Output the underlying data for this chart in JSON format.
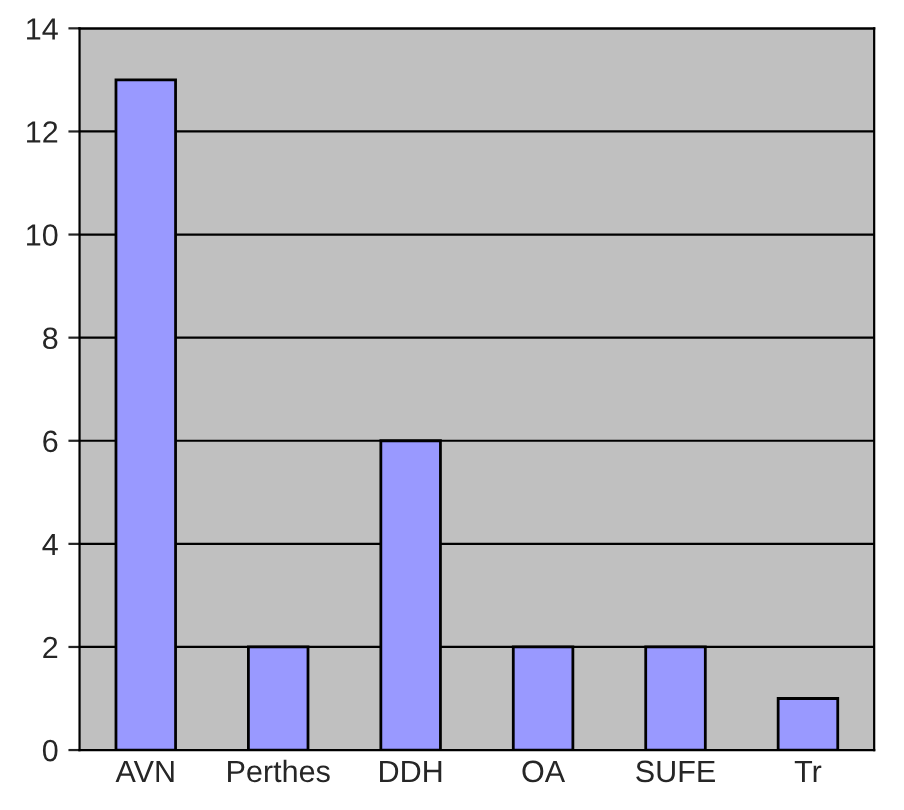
{
  "chart_data": {
    "type": "bar",
    "categories": [
      "AVN",
      "Perthes",
      "DDH",
      "OA",
      "SUFE",
      "Tr"
    ],
    "values": [
      13,
      2,
      6,
      2,
      2,
      1
    ],
    "color": "#9999ff",
    "ylim": [
      0,
      14
    ],
    "yticks": [
      0,
      2,
      4,
      6,
      8,
      10,
      12,
      14
    ],
    "grid": "y",
    "legend": false
  }
}
